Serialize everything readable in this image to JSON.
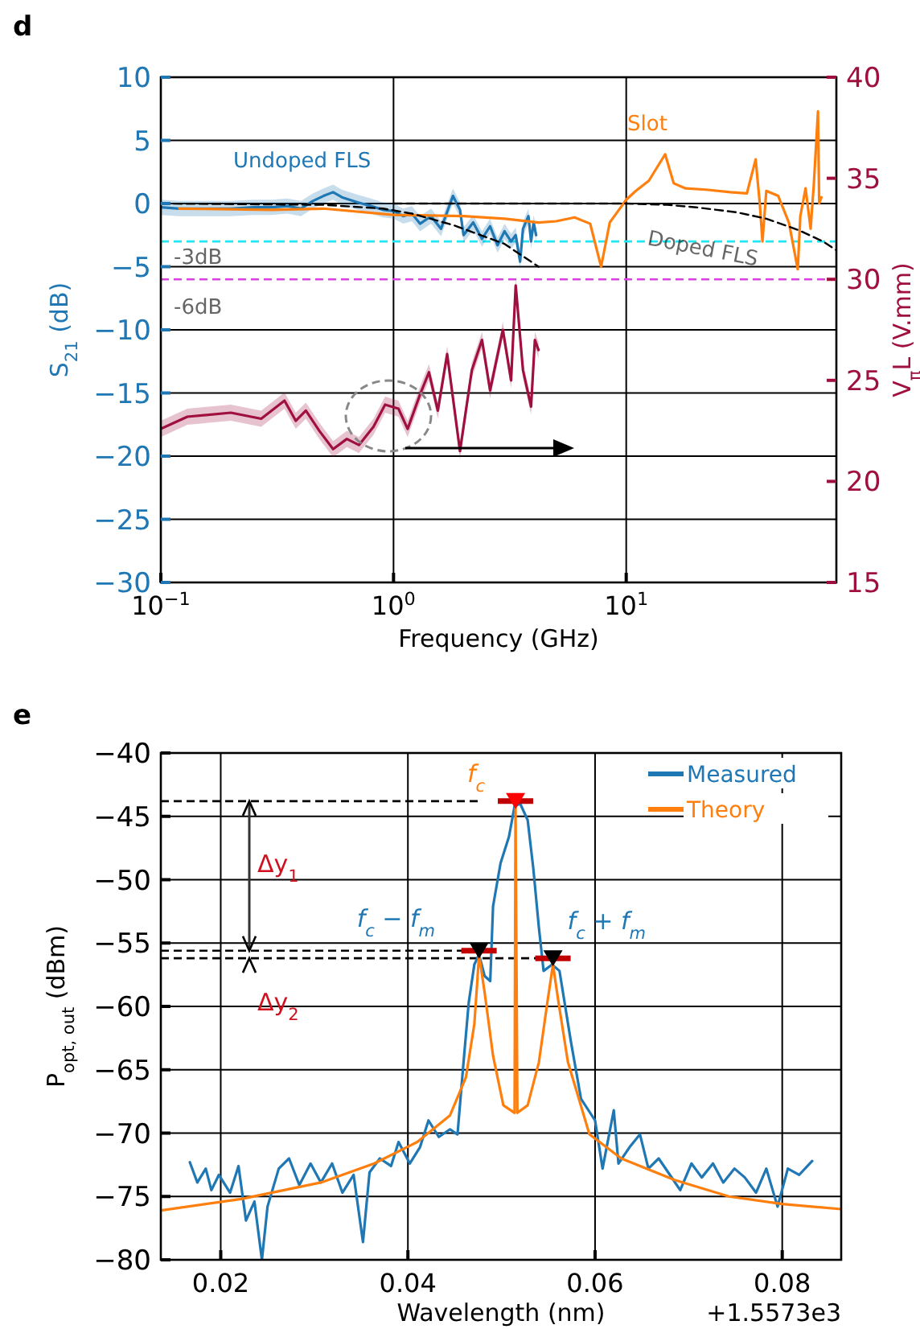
{
  "chart_data": [
    {
      "type": "line",
      "title": "d",
      "xlabel": "Frequency (GHz)",
      "ylabel": "S$_{21}$ (dB)",
      "y2label": "V$_{π}$L (V.mm)",
      "log": "x",
      "xlim": [
        0.1,
        80
      ],
      "xticks": [
        {
          "value": 0.1,
          "label": "10$^{−1}$"
        },
        {
          "value": 1,
          "label": "10$^{0}$"
        },
        {
          "value": 10,
          "label": "10$^{1}$"
        }
      ],
      "ylim": [
        -30,
        10
      ],
      "yticks": [
        -30,
        -25,
        -20,
        -15,
        -10,
        -5,
        0,
        5,
        10
      ],
      "y2lim": [
        15,
        40
      ],
      "y2ticks": [
        15,
        20,
        25,
        30,
        35,
        40
      ],
      "grid": true,
      "ref_lines": [
        {
          "axis": "y",
          "value": -3,
          "label": "-3dB",
          "color": "#22e6f0",
          "line_style": "dashed"
        },
        {
          "axis": "y",
          "value": -6,
          "label": "-6dB",
          "color": "#e040e0",
          "line_style": "dashed"
        }
      ],
      "series": [
        {
          "name": "Undoped FLS",
          "color": "#1f77b4",
          "x": [
            0.1,
            0.12,
            0.15,
            0.2,
            0.25,
            0.3,
            0.35,
            0.4,
            0.45,
            0.5,
            0.55,
            0.6,
            0.7,
            0.8,
            0.9,
            1.0,
            1.1,
            1.2,
            1.3,
            1.45,
            1.6,
            1.8,
            1.93,
            2.0,
            2.2,
            2.4,
            2.6,
            2.8,
            3.0,
            3.2,
            3.35,
            3.5,
            3.6,
            3.8,
            3.9,
            4.0,
            4.1
          ],
          "values": [
            -0.3,
            -0.4,
            -0.4,
            -0.4,
            -0.3,
            -0.3,
            -0.2,
            -0.4,
            0.2,
            0.6,
            0.9,
            0.5,
            0.1,
            -0.2,
            -0.5,
            -0.6,
            -1.0,
            -0.8,
            -1.6,
            -1.0,
            -2.0,
            0.6,
            -0.5,
            -2.5,
            -1.5,
            -2.8,
            -1.8,
            -3.3,
            -2.2,
            -3.0,
            -2.5,
            -4.6,
            -2.0,
            -1.0,
            -3.0,
            -1.5,
            -2.5
          ],
          "lower": [
            -0.9,
            -1.0,
            -1.0,
            -1.0,
            -0.9,
            -0.9,
            -0.8,
            -1.0,
            -0.4,
            0.0,
            0.3,
            -0.1,
            -0.5,
            -0.8,
            -1.1,
            -1.2,
            -1.6,
            -1.4,
            -2.2,
            -1.6,
            -2.6,
            0.0,
            -1.1,
            -3.1,
            -2.1,
            -3.4,
            -2.4,
            -3.9,
            -2.8,
            -3.6,
            -3.1,
            -5.2,
            -2.6,
            -1.6,
            -3.6,
            -2.1,
            -3.1
          ],
          "upper": [
            0.3,
            0.2,
            0.2,
            0.2,
            0.3,
            0.3,
            0.4,
            0.2,
            0.8,
            1.2,
            1.5,
            1.1,
            0.7,
            0.4,
            0.1,
            0.0,
            -0.4,
            -0.2,
            -1.0,
            -0.4,
            -1.4,
            1.2,
            0.1,
            -1.9,
            -0.9,
            -2.2,
            -1.2,
            -2.7,
            -1.6,
            -2.4,
            -1.9,
            -4.0,
            -1.4,
            -0.4,
            -2.4,
            -0.9,
            -1.9
          ]
        },
        {
          "name": "Slot",
          "color": "#ff7f0e",
          "x": [
            0.12,
            0.3,
            0.5,
            1.0,
            2,
            3,
            4.2,
            5,
            6,
            7,
            7.8,
            8.5,
            10,
            11,
            12.5,
            14.7,
            16,
            18,
            22,
            28,
            33,
            36,
            37.5,
            38.5,
            40,
            45,
            50,
            54.6,
            56,
            59,
            62,
            64,
            66.7,
            67.5,
            69
          ],
          "values": [
            -0.4,
            -0.5,
            -0.4,
            -0.9,
            -1.0,
            -1.2,
            -1.5,
            -1.4,
            -1.1,
            -1.6,
            -5.0,
            -1.5,
            0.3,
            1.0,
            1.8,
            3.9,
            1.6,
            1.2,
            1.1,
            0.9,
            0.8,
            3.5,
            0,
            -3.0,
            1.0,
            0.6,
            -1.5,
            -5.2,
            -1.0,
            1.2,
            -2.0,
            1.5,
            7.3,
            0,
            0.5
          ]
        },
        {
          "color": "#000000",
          "line_style": "dashed",
          "x": [
            0.1,
            0.5,
            0.9,
            1.2,
            1.8,
            3,
            4.2
          ],
          "values": [
            0,
            -0.1,
            -0.4,
            -0.8,
            -1.7,
            -3.2,
            -5
          ]
        },
        {
          "name": "Doped FLS",
          "color": "#000000",
          "line_style": "dashed",
          "x": [
            1,
            10,
            15,
            20,
            30,
            40,
            55,
            70,
            80
          ],
          "values": [
            0,
            0,
            -0.1,
            -0.3,
            -0.7,
            -1.2,
            -2.1,
            -3.0,
            -3.7
          ]
        },
        {
          "color": "#a0103e",
          "axis": "y2",
          "x": [
            0.1,
            0.13,
            0.2,
            0.27,
            0.34,
            0.38,
            0.42,
            0.48,
            0.55,
            0.63,
            0.71,
            0.82,
            0.92,
            1.05,
            1.15,
            1.3,
            1.42,
            1.55,
            1.7,
            1.93,
            2.17,
            2.4,
            2.6,
            2.95,
            3.2,
            3.35,
            3.6,
            3.9,
            4.05,
            4.2
          ],
          "values": [
            22.6,
            23.2,
            23.4,
            23.1,
            24.0,
            23.0,
            23.5,
            22.5,
            21.6,
            22.1,
            21.8,
            22.7,
            23.8,
            23.6,
            22.6,
            24.3,
            25.4,
            23.5,
            26.3,
            21.5,
            25.5,
            27.0,
            24.5,
            27.5,
            25.0,
            29.7,
            25.5,
            23.7,
            27.0,
            26.5
          ],
          "lower": [
            22.2,
            22.8,
            23.0,
            22.7,
            23.6,
            22.6,
            23.1,
            22.1,
            21.2,
            21.7,
            21.4,
            22.3,
            23.4,
            23.2,
            22.2,
            23.9,
            25.0,
            23.1,
            25.9,
            21.1,
            25.1,
            26.6,
            24.1,
            27.1,
            24.6,
            29.3,
            25.1,
            23.3,
            26.6,
            26.1
          ],
          "upper": [
            23.0,
            23.6,
            23.8,
            23.5,
            24.4,
            23.4,
            23.9,
            22.9,
            22.0,
            22.5,
            22.2,
            23.1,
            24.2,
            24.0,
            23.0,
            24.7,
            25.8,
            23.9,
            26.7,
            21.9,
            25.9,
            27.4,
            24.9,
            27.9,
            25.4,
            30.1,
            25.9,
            24.1,
            27.4,
            26.9
          ]
        }
      ]
    },
    {
      "type": "line",
      "title": "e",
      "xlabel": "Wavelength  (nm)",
      "ylabel": "P$_{opt, out}$  (dBm)",
      "xlim": [
        0.0136,
        0.0863
      ],
      "xticks": [
        0.02,
        0.04,
        0.06,
        0.08
      ],
      "ylim": [
        -80,
        -40
      ],
      "yticks": [
        -80,
        -75,
        -70,
        -65,
        -60,
        -55,
        -50,
        -45,
        -40
      ],
      "grid": true,
      "legend": "top right",
      "ref_lines": [
        {
          "axis": "y",
          "value": -43.8,
          "color": "#000000",
          "line_style": "dashed"
        },
        {
          "axis": "y",
          "value": -55.6,
          "color": "#000000",
          "line_style": "dashed"
        },
        {
          "axis": "y",
          "value": -56.2,
          "color": "#000000",
          "line_style": "dashed"
        }
      ],
      "annotations": [
        {
          "text": "f$_{c}$",
          "x": 0.0515,
          "y": -43.8
        },
        {
          "text": "f$_{c}$ − f$_{m}$",
          "x": 0.0476,
          "y": -55.6
        },
        {
          "text": "f$_{c}$ + f$_{m}$",
          "x": 0.0555,
          "y": -56.2
        },
        "Δy$_{1}$",
        "Δy$_{2}$",
        "+1.5573e3"
      ],
      "series": [
        {
          "name": "Measured",
          "color": "#1f77b4",
          "x": [
            0.0167,
            0.0175,
            0.0184,
            0.019,
            0.0198,
            0.021,
            0.0219,
            0.0227,
            0.0236,
            0.0244,
            0.025,
            0.0262,
            0.0273,
            0.0284,
            0.0296,
            0.0307,
            0.0319,
            0.033,
            0.0342,
            0.0352,
            0.0359,
            0.037,
            0.0382,
            0.039,
            0.0402,
            0.0413,
            0.0422,
            0.0433,
            0.0445,
            0.0453,
            0.0459,
            0.0465,
            0.0471,
            0.0476,
            0.0482,
            0.0488,
            0.0491,
            0.0499,
            0.0508,
            0.0514,
            0.052,
            0.0528,
            0.0534,
            0.054,
            0.0545,
            0.0554,
            0.0562,
            0.0574,
            0.0585,
            0.06,
            0.0608,
            0.062,
            0.0625,
            0.0637,
            0.0648,
            0.0657,
            0.0668,
            0.068,
            0.0691,
            0.0703,
            0.0714,
            0.0726,
            0.0737,
            0.0749,
            0.076,
            0.0772,
            0.0783,
            0.0795,
            0.0806,
            0.0818,
            0.0832
          ],
          "values": [
            -72.3,
            -73.9,
            -72.8,
            -74.5,
            -73.3,
            -74.7,
            -72.6,
            -76.9,
            -75.4,
            -80,
            -75.8,
            -72.8,
            -72.0,
            -74.1,
            -72.4,
            -73.9,
            -72.4,
            -74.7,
            -73.3,
            -78.6,
            -73.1,
            -72.0,
            -72.6,
            -70.7,
            -72.4,
            -71.1,
            -69.0,
            -70.3,
            -69.7,
            -70.1,
            -64.8,
            -59.7,
            -56.7,
            -55.9,
            -57.6,
            -58.0,
            -52.1,
            -48.7,
            -46.6,
            -44.2,
            -44.0,
            -45.3,
            -49.1,
            -53.8,
            -57.2,
            -56.7,
            -57.2,
            -62.7,
            -67.3,
            -69.0,
            -72.8,
            -68.2,
            -72.4,
            -71.1,
            -70.1,
            -72.8,
            -72.0,
            -73.3,
            -74.5,
            -72.4,
            -73.5,
            -72.4,
            -73.9,
            -72.8,
            -73.5,
            -74.7,
            -72.8,
            -75.8,
            -72.8,
            -73.3,
            -72.2
          ]
        },
        {
          "name": "Theory",
          "color": "#ff7f0e",
          "x": [
            0.0136,
            0.0222,
            0.0307,
            0.0364,
            0.041,
            0.0445,
            0.0462,
            0.0471,
            0.0474,
            0.0476,
            0.0482,
            0.0491,
            0.0502,
            0.0514,
            0.0515,
            0.0517,
            0.0528,
            0.054,
            0.0549,
            0.0555,
            0.0561,
            0.0571,
            0.0594,
            0.0628,
            0.0685,
            0.0743,
            0.08,
            0.0863
          ],
          "values": [
            -76.1,
            -75.2,
            -73.9,
            -72.4,
            -70.7,
            -68.6,
            -65.6,
            -61.4,
            -58.2,
            -55.9,
            -58.9,
            -63.9,
            -67.8,
            -68.4,
            -44.0,
            -68.4,
            -67.8,
            -64.4,
            -59.7,
            -56.7,
            -59.7,
            -64.4,
            -70.1,
            -72.0,
            -73.7,
            -75.0,
            -75.6,
            -76.0
          ]
        },
        {
          "type": "scatter",
          "marker": "triangle",
          "color": "#ff0000",
          "x": [
            0.0515
          ],
          "values": [
            -43.8
          ]
        },
        {
          "type": "scatter",
          "marker": "triangle",
          "color": "#000000",
          "x": [
            0.0476,
            0.0555
          ],
          "values": [
            -55.6,
            -56.2
          ]
        }
      ]
    }
  ]
}
